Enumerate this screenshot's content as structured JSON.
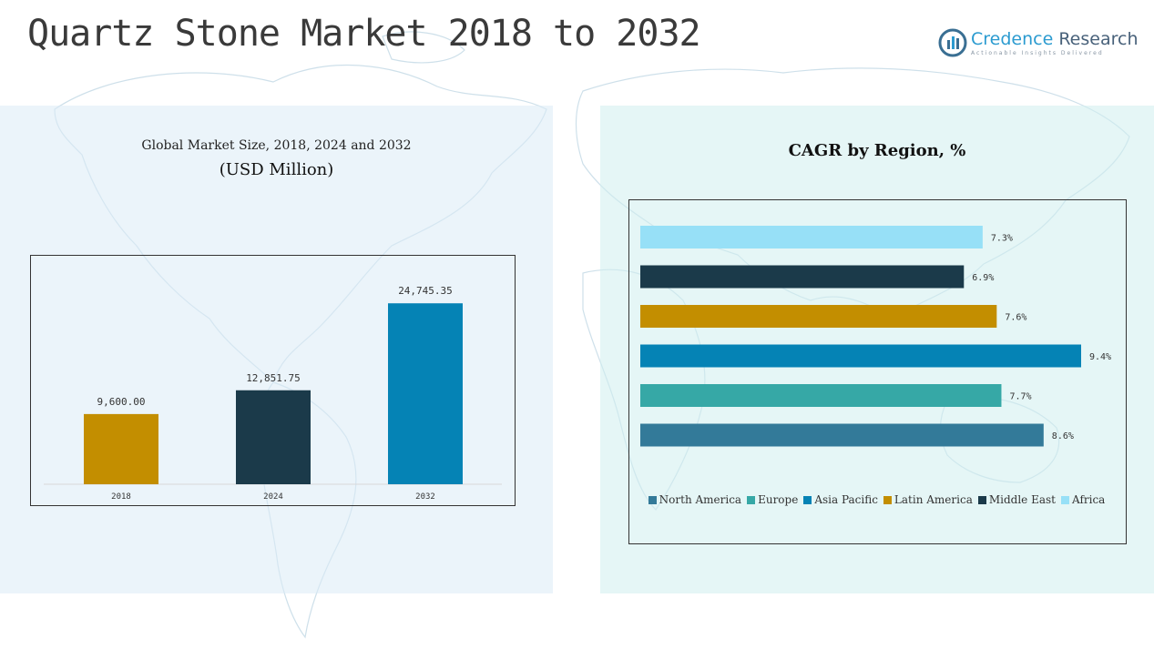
{
  "header": {
    "title": "Quartz Stone Market 2018 to 2032",
    "logo_name_primary": "Credence",
    "logo_name_secondary": "Research",
    "logo_tagline": "Actionable Insights Delivered"
  },
  "left_panel": {
    "subtitle": "Global Market Size, 2018, 2024 and 2032",
    "unit": "(USD Million)"
  },
  "right_panel": {
    "title": "CAGR by Region, %"
  },
  "chart_data": [
    {
      "type": "bar",
      "title": "Global Market Size, 2018, 2024 and 2032",
      "ylabel": "(USD Million)",
      "categories": [
        "2018",
        "2024",
        "2032"
      ],
      "values": [
        9600.0,
        12851.75,
        24745.35
      ],
      "value_labels": [
        "9,600.00",
        "12,851.75",
        "24,745.35"
      ],
      "colors": [
        "#c38e00",
        "#1b3a4a",
        "#0583b5"
      ],
      "ylim": [
        0,
        30000
      ],
      "grid": false
    },
    {
      "type": "bar",
      "orientation": "horizontal",
      "title": "CAGR by Region, %",
      "categories": [
        "Africa",
        "Middle East",
        "Latin America",
        "Asia Pacific",
        "Europe",
        "North America"
      ],
      "values": [
        7.3,
        6.9,
        7.6,
        9.4,
        7.7,
        8.6
      ],
      "value_labels": [
        "7.3%",
        "6.9%",
        "7.6%",
        "9.4%",
        "7.7%",
        "8.6%"
      ],
      "colors": [
        "#97e0f7",
        "#1b3a4a",
        "#c38e00",
        "#0583b5",
        "#36a8a6",
        "#337a99"
      ],
      "xlim": [
        0,
        9.4
      ],
      "legend": [
        "North America",
        "Europe",
        "Asia Pacific",
        "Latin America",
        "Middle East",
        "Africa"
      ],
      "legend_colors": [
        "#337a99",
        "#36a8a6",
        "#0583b5",
        "#c38e00",
        "#1b3a4a",
        "#97e0f7"
      ],
      "legend_position": "bottom",
      "grid": false
    }
  ]
}
